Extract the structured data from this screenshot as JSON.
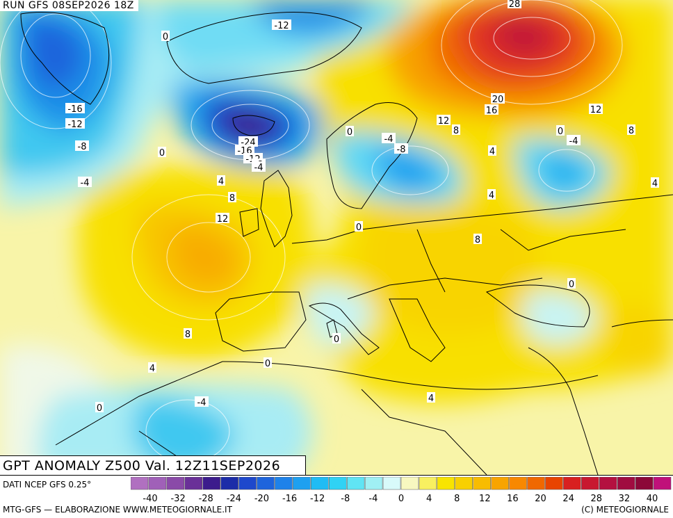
{
  "header": {
    "run": "RUN GFS 08SEP2026 18Z"
  },
  "title": "GPT ANOMALY Z500 Val. 12Z11SEP2026",
  "footer": {
    "data_source": "DATI NCEP GFS 0.25°",
    "credit_left": "MTG-GFS — ELABORAZIONE WWW.METEOGIORNALE.IT",
    "credit_right": "(C) METEOGIORNALE"
  },
  "scale": {
    "colors": [
      "#b070c0",
      "#a060b8",
      "#8a4aa8",
      "#6a3098",
      "#3c1c8c",
      "#1c2ca8",
      "#1e48cc",
      "#1e64dc",
      "#1e82ea",
      "#1ea0f0",
      "#20bcf4",
      "#30d2f4",
      "#60e4f4",
      "#a0f0f4",
      "#d8fafa",
      "#f8f8c0",
      "#f8f060",
      "#f8e400",
      "#f8d000",
      "#f8bc00",
      "#f8a400",
      "#f88800",
      "#f06800",
      "#e84400",
      "#d82020",
      "#c81830",
      "#b41040",
      "#a00c40",
      "#8c0838",
      "#c0107a"
    ],
    "ticks": [
      "-40",
      "-32",
      "-28",
      "-24",
      "-20",
      "-16",
      "-12",
      "-8",
      "-4",
      "0",
      "4",
      "8",
      "12",
      "16",
      "20",
      "24",
      "28",
      "32",
      "40"
    ]
  },
  "map_labels": [
    {
      "text": "-12"
    },
    {
      "text": "0"
    },
    {
      "text": "28"
    },
    {
      "text": "-16"
    },
    {
      "text": "-12"
    },
    {
      "text": "-8"
    },
    {
      "text": "0"
    },
    {
      "text": "-4"
    },
    {
      "text": "-24"
    },
    {
      "text": "-16"
    },
    {
      "text": "-12"
    },
    {
      "text": "-8"
    },
    {
      "text": "-4"
    },
    {
      "text": "4"
    },
    {
      "text": "8"
    },
    {
      "text": "12"
    },
    {
      "text": "0"
    },
    {
      "text": "-4"
    },
    {
      "text": "-8"
    },
    {
      "text": "20"
    },
    {
      "text": "16"
    },
    {
      "text": "12"
    },
    {
      "text": "8"
    },
    {
      "text": "12"
    },
    {
      "text": "4"
    },
    {
      "text": "0"
    },
    {
      "text": "-4"
    },
    {
      "text": "8"
    },
    {
      "text": "4"
    },
    {
      "text": "4"
    },
    {
      "text": "0"
    },
    {
      "text": "8"
    },
    {
      "text": "0"
    },
    {
      "text": "8"
    },
    {
      "text": "0"
    },
    {
      "text": "0"
    },
    {
      "text": "4"
    },
    {
      "text": "0"
    },
    {
      "text": "-4"
    },
    {
      "text": "4"
    }
  ]
}
